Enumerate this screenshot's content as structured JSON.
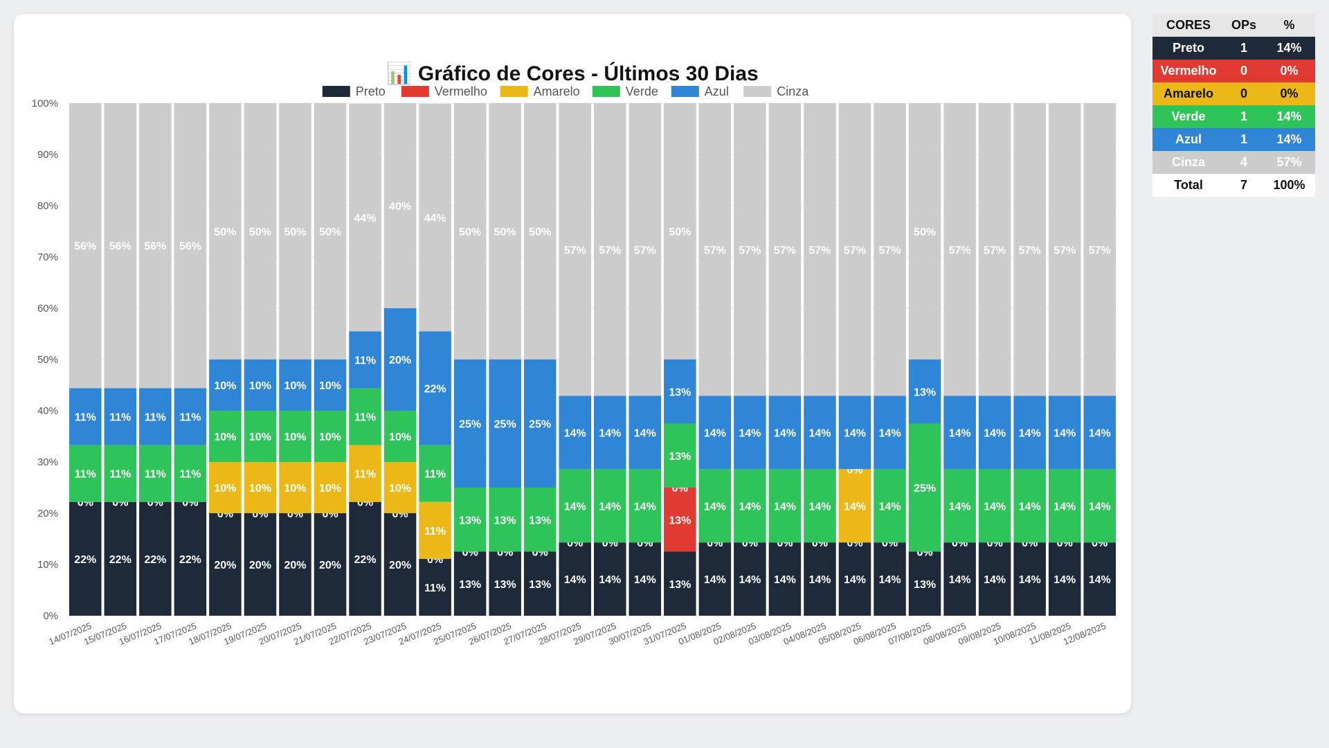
{
  "chart_data": {
    "type": "bar",
    "stacked": true,
    "title_icon": "📊",
    "title": "Gráfico de Cores - Últimos 30 Dias",
    "ylim": [
      0,
      100
    ],
    "yticks": [
      "0%",
      "10%",
      "20%",
      "30%",
      "40%",
      "50%",
      "60%",
      "70%",
      "80%",
      "90%",
      "100%"
    ],
    "legend_position": "top-center",
    "categories": [
      "14/07/2025",
      "15/07/2025",
      "16/07/2025",
      "17/07/2025",
      "18/07/2025",
      "19/07/2025",
      "20/07/2025",
      "21/07/2025",
      "22/07/2025",
      "23/07/2025",
      "24/07/2025",
      "25/07/2025",
      "26/07/2025",
      "27/07/2025",
      "28/07/2025",
      "29/07/2025",
      "30/07/2025",
      "31/07/2025",
      "01/08/2025",
      "02/08/2025",
      "03/08/2025",
      "04/08/2025",
      "05/08/2025",
      "06/08/2025",
      "07/08/2025",
      "08/08/2025",
      "09/08/2025",
      "10/08/2025",
      "11/08/2025",
      "12/08/2025"
    ],
    "series": [
      {
        "name": "Preto",
        "color": "#1e2a3a",
        "values": [
          22.2,
          22.2,
          22.2,
          22.2,
          20,
          20,
          20,
          20,
          22.2,
          20,
          11.1,
          12.5,
          12.5,
          12.5,
          14.3,
          14.3,
          14.3,
          12.5,
          14.3,
          14.3,
          14.3,
          14.3,
          14.3,
          14.3,
          12.5,
          14.3,
          14.3,
          14.3,
          14.3,
          14.3
        ],
        "labels": [
          "22%",
          "22%",
          "22%",
          "22%",
          "20%",
          "20%",
          "20%",
          "20%",
          "22%",
          "20%",
          "11%",
          "13%",
          "13%",
          "13%",
          "14%",
          "14%",
          "14%",
          "13%",
          "14%",
          "14%",
          "14%",
          "14%",
          "14%",
          "14%",
          "13%",
          "14%",
          "14%",
          "14%",
          "14%",
          "14%"
        ]
      },
      {
        "name": "Vermelho",
        "color": "#e03a32",
        "values": [
          0,
          0,
          0,
          0,
          0,
          0,
          0,
          0,
          0,
          0,
          0,
          0,
          0,
          0,
          0,
          0,
          0,
          12.5,
          0,
          0,
          0,
          0,
          0,
          0,
          0,
          0,
          0,
          0,
          0,
          0
        ],
        "labels": [
          "0%",
          "0%",
          "0%",
          "0%",
          "0%",
          "0%",
          "0%",
          "0%",
          "0%",
          "0%",
          "0%",
          "0%",
          "0%",
          "0%",
          "0%",
          "0%",
          "0%",
          "13%",
          "0%",
          "0%",
          "0%",
          "0%",
          "0%",
          "0%",
          "0%",
          "0%",
          "0%",
          "0%",
          "0%",
          "0%"
        ]
      },
      {
        "name": "Amarelo",
        "color": "#ecb818",
        "values": [
          0,
          0,
          0,
          0,
          10,
          10,
          10,
          10,
          11.1,
          10,
          11.1,
          0,
          0,
          0,
          0,
          0,
          0,
          0,
          0,
          0,
          0,
          0,
          14.3,
          0,
          0,
          0,
          0,
          0,
          0,
          0
        ],
        "labels": [
          "0%",
          "0%",
          "0%",
          "0%",
          "10%",
          "10%",
          "10%",
          "10%",
          "11%",
          "10%",
          "11%",
          "0%",
          "0%",
          "0%",
          "0%",
          "0%",
          "0%",
          "0%",
          "0%",
          "0%",
          "0%",
          "0%",
          "14%",
          "0%",
          "0%",
          "0%",
          "0%",
          "0%",
          "0%",
          "0%"
        ]
      },
      {
        "name": "Verde",
        "color": "#2ec45a",
        "values": [
          11.1,
          11.1,
          11.1,
          11.1,
          10,
          10,
          10,
          10,
          11.1,
          10,
          11.1,
          12.5,
          12.5,
          12.5,
          14.3,
          14.3,
          14.3,
          12.5,
          14.3,
          14.3,
          14.3,
          14.3,
          0,
          14.3,
          25,
          14.3,
          14.3,
          14.3,
          14.3,
          14.3
        ],
        "labels": [
          "11%",
          "11%",
          "11%",
          "11%",
          "10%",
          "10%",
          "10%",
          "10%",
          "11%",
          "10%",
          "11%",
          "13%",
          "13%",
          "13%",
          "14%",
          "14%",
          "14%",
          "13%",
          "14%",
          "14%",
          "14%",
          "14%",
          "0%",
          "14%",
          "25%",
          "14%",
          "14%",
          "14%",
          "14%",
          "14%"
        ]
      },
      {
        "name": "Azul",
        "color": "#2f86d6",
        "values": [
          11.1,
          11.1,
          11.1,
          11.1,
          10,
          10,
          10,
          10,
          11.1,
          20,
          22.2,
          25,
          25,
          25,
          14.3,
          14.3,
          14.3,
          12.5,
          14.3,
          14.3,
          14.3,
          14.3,
          14.3,
          14.3,
          12.5,
          14.3,
          14.3,
          14.3,
          14.3,
          14.3
        ],
        "labels": [
          "11%",
          "11%",
          "11%",
          "11%",
          "10%",
          "10%",
          "10%",
          "10%",
          "11%",
          "20%",
          "22%",
          "25%",
          "25%",
          "25%",
          "14%",
          "14%",
          "14%",
          "13%",
          "14%",
          "14%",
          "14%",
          "14%",
          "14%",
          "14%",
          "13%",
          "14%",
          "14%",
          "14%",
          "14%",
          "14%"
        ]
      },
      {
        "name": "Cinza",
        "color": "#cccccc",
        "values": [
          55.6,
          55.6,
          55.6,
          55.6,
          50,
          50,
          50,
          50,
          44.4,
          40,
          44.4,
          50,
          50,
          50,
          57.1,
          57.1,
          57.1,
          50,
          57.1,
          57.1,
          57.1,
          57.1,
          57.1,
          57.1,
          50,
          57.1,
          57.1,
          57.1,
          57.1,
          57.1
        ],
        "labels": [
          "56%",
          "56%",
          "56%",
          "56%",
          "50%",
          "50%",
          "50%",
          "50%",
          "44%",
          "40%",
          "44%",
          "50%",
          "50%",
          "50%",
          "57%",
          "57%",
          "57%",
          "50%",
          "57%",
          "57%",
          "57%",
          "57%",
          "57%",
          "57%",
          "50%",
          "57%",
          "57%",
          "57%",
          "57%",
          "57%"
        ]
      }
    ]
  },
  "summary": {
    "headers": [
      "CORES",
      "OPs",
      "%"
    ],
    "rows": [
      {
        "name": "Preto",
        "ops": "1",
        "pct": "14%",
        "bg": "#1e2a3a",
        "fg": "#ffffff"
      },
      {
        "name": "Vermelho",
        "ops": "0",
        "pct": "0%",
        "bg": "#e03a32",
        "fg": "#ffffff"
      },
      {
        "name": "Amarelo",
        "ops": "0",
        "pct": "0%",
        "bg": "#ecb818",
        "fg": "#111111"
      },
      {
        "name": "Verde",
        "ops": "1",
        "pct": "14%",
        "bg": "#2ec45a",
        "fg": "#ffffff"
      },
      {
        "name": "Azul",
        "ops": "1",
        "pct": "14%",
        "bg": "#2f86d6",
        "fg": "#ffffff"
      },
      {
        "name": "Cinza",
        "ops": "4",
        "pct": "57%",
        "bg": "#cccccc",
        "fg": "#ffffff"
      }
    ],
    "total": {
      "name": "Total",
      "ops": "7",
      "pct": "100%"
    }
  }
}
